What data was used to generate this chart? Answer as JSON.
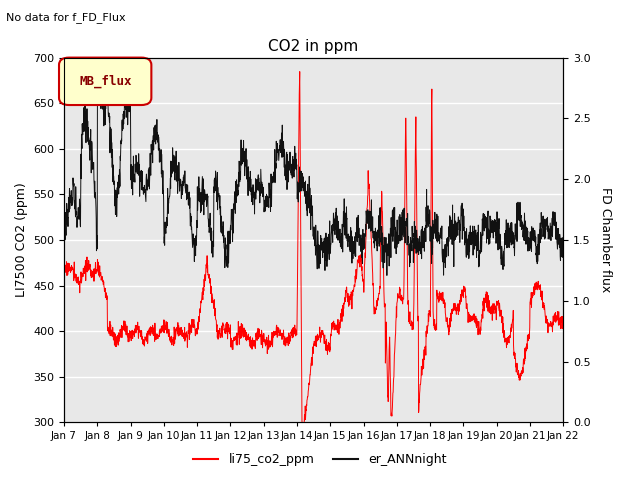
{
  "title": "CO2 in ppm",
  "ylabel_left": "LI7500 CO2 (ppm)",
  "ylabel_right": "FD Chamber flux",
  "ylim_left": [
    300,
    700
  ],
  "ylim_right": [
    0.0,
    3.0
  ],
  "yticks_left": [
    300,
    350,
    400,
    450,
    500,
    550,
    600,
    650,
    700
  ],
  "yticks_right": [
    0.0,
    0.5,
    1.0,
    1.5,
    2.0,
    2.5,
    3.0
  ],
  "no_data_text": "No data for f_FD_Flux",
  "legend_box_label": "MB_flux",
  "xlabel_ticks": [
    "Jan 7",
    "Jan 8",
    "Jan 9",
    "Jan 10",
    "Jan 11",
    "Jan 12",
    "Jan 13",
    "Jan 14",
    "Jan 15",
    "Jan 16",
    "Jan 17",
    "Jan 18",
    "Jan 19",
    "Jan 20",
    "Jan 21",
    "Jan 22"
  ],
  "line1_color": "#ff0000",
  "line1_label": "li75_co2_ppm",
  "line2_color": "#111111",
  "line2_label": "er_ANNnight",
  "plot_bg_color": "#e8e8e8",
  "fig_bg_color": "#ffffff",
  "grid_color": "#ffffff",
  "mb_box_facecolor": "#ffffcc",
  "mb_box_edgecolor": "#cc0000",
  "mb_text_color": "#880000",
  "n_points": 2000
}
